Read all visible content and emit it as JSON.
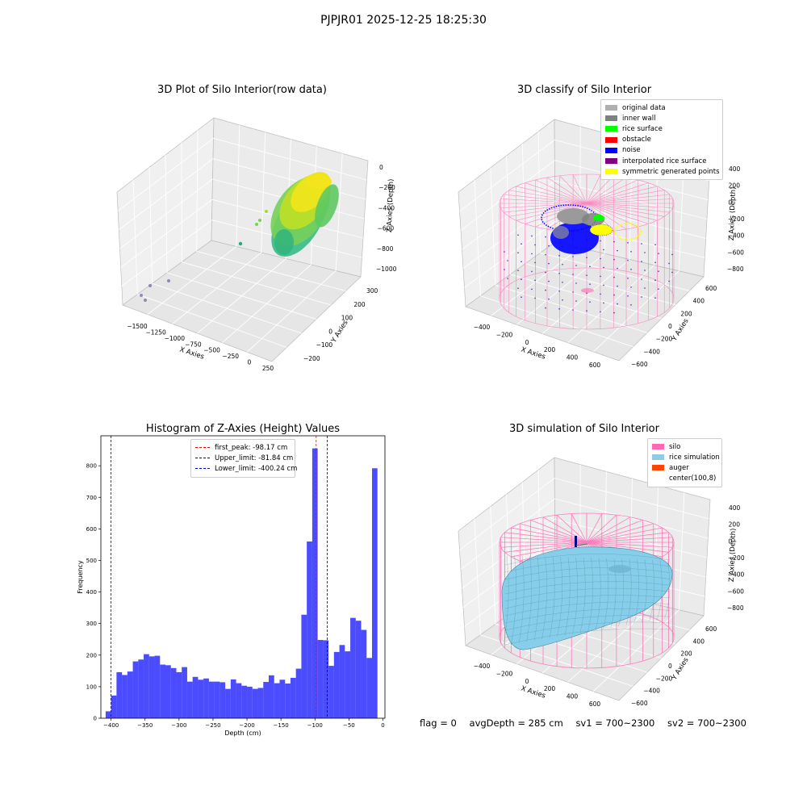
{
  "suptitle": "PJPJR01 2025-12-25 18:25:30",
  "footer": {
    "flag": "flag = 0",
    "avg_depth": "avgDepth = 285 cm",
    "sv1": "sv1 = 700~2300",
    "sv2": "sv2 = 700~2300"
  },
  "colors": {
    "hist_bar": "#0000ff",
    "first_peak": "#ff0000",
    "upper_limit": "#00008b",
    "lower_limit": "#0000cd",
    "silo": "#ff69b4",
    "rice_simulation": "#87ceeb",
    "auger": "#ff4500",
    "original_data": "#b0b0b0",
    "inner_wall": "#808080",
    "rice_surface": "#00ff00",
    "obstacle": "#ff0000",
    "noise": "#0000ff",
    "interpolated_rice_surface": "#800080",
    "symmetric_generated_points": "#ffff00"
  },
  "chart_data": [
    {
      "type": "scatter",
      "subtype": "3d",
      "title": "3D Plot of Silo Interior(row data)",
      "xlabel": "X Axies",
      "ylabel": "Y Axies",
      "zlabel": "Z Axies (Depth)",
      "x_ticks": [
        "−1500",
        "−1250",
        "−1000",
        "−750",
        "−500",
        "−250",
        "0",
        "250"
      ],
      "y_ticks": [
        "−200",
        "−100",
        "0",
        "100",
        "200",
        "300"
      ],
      "z_ticks": [
        "0",
        "−200",
        "−400",
        "−600",
        "−800",
        "−1000"
      ]
    },
    {
      "type": "scatter",
      "subtype": "3d",
      "title": "3D classify of Silo Interior",
      "xlabel": "X Axies",
      "ylabel": "Y Axies",
      "zlabel": "Z Axies (Depth)",
      "x_ticks": [
        "−400",
        "−200",
        "0",
        "200",
        "400",
        "600"
      ],
      "y_ticks": [
        "−600",
        "−400",
        "−200",
        "0",
        "200",
        "400",
        "600"
      ],
      "z_ticks": [
        "400",
        "200",
        "0",
        "−200",
        "−400",
        "−600",
        "−800"
      ],
      "legend": [
        {
          "label": "original data",
          "color": "#b0b0b0"
        },
        {
          "label": "inner wall",
          "color": "#808080"
        },
        {
          "label": "rice surface",
          "color": "#00ff00"
        },
        {
          "label": "obstacle",
          "color": "#ff0000"
        },
        {
          "label": "noise",
          "color": "#0000ff"
        },
        {
          "label": "interpolated rice surface",
          "color": "#800080"
        },
        {
          "label": "symmetric generated points",
          "color": "#ffff00"
        }
      ],
      "legend_placement": "top-right"
    },
    {
      "type": "bar",
      "subtype": "histogram",
      "title": "Histogram of Z-Axies (Height) Values",
      "xlabel": "Depth (cm)",
      "ylabel": "Frequency",
      "xlim": [
        -415,
        3
      ],
      "ylim": [
        0,
        895
      ],
      "x_ticks": [
        -400,
        -350,
        -300,
        -250,
        -200,
        -150,
        -100,
        -50,
        0
      ],
      "x_tick_labels": [
        "−400",
        "−350",
        "−300",
        "−250",
        "−200",
        "−150",
        "−100",
        "−50",
        "0"
      ],
      "y_ticks": [
        0,
        100,
        200,
        300,
        400,
        500,
        600,
        700,
        800
      ],
      "bin_start": -408,
      "bin_width": 8.0,
      "values": [
        22,
        72,
        146,
        137,
        148,
        180,
        186,
        203,
        196,
        198,
        170,
        168,
        159,
        146,
        162,
        116,
        131,
        122,
        126,
        116,
        116,
        114,
        93,
        123,
        111,
        103,
        100,
        93,
        96,
        115,
        136,
        111,
        122,
        110,
        128,
        157,
        328,
        560,
        855,
        248,
        247,
        166,
        210,
        232,
        212,
        318,
        309,
        280,
        191,
        792
      ],
      "vlines": [
        {
          "name": "first_peak",
          "label": "first_peak: -98.17 cm",
          "x": -98.17,
          "color": "#ff0000"
        },
        {
          "name": "upper_limit",
          "label": "Upper_limit: -81.84 cm",
          "x": -81.84,
          "color": "#00008b"
        },
        {
          "name": "lower_limit",
          "label": "Lower_limit: -400.24 cm",
          "x": -400.24,
          "color": "#0000cd"
        }
      ],
      "legend_placement": "top-center"
    },
    {
      "type": "scatter",
      "subtype": "3d-surface",
      "title": "3D simulation of Silo Interior",
      "xlabel": "X Axies",
      "ylabel": "Y Axies",
      "zlabel": "Z Axies (Depth)",
      "x_ticks": [
        "−400",
        "−200",
        "0",
        "200",
        "400",
        "600"
      ],
      "y_ticks": [
        "−600",
        "−400",
        "−200",
        "0",
        "200",
        "400",
        "600"
      ],
      "z_ticks": [
        "400",
        "200",
        "0",
        "−200",
        "−400",
        "−600",
        "−800"
      ],
      "legend": [
        {
          "label": "silo",
          "color": "#ff69b4"
        },
        {
          "label": "rice simulation",
          "color": "#87ceeb"
        },
        {
          "label": "auger",
          "color": "#ff4500"
        },
        {
          "label": "center(100,8)",
          "color": ""
        }
      ],
      "legend_placement": "top-right"
    }
  ]
}
